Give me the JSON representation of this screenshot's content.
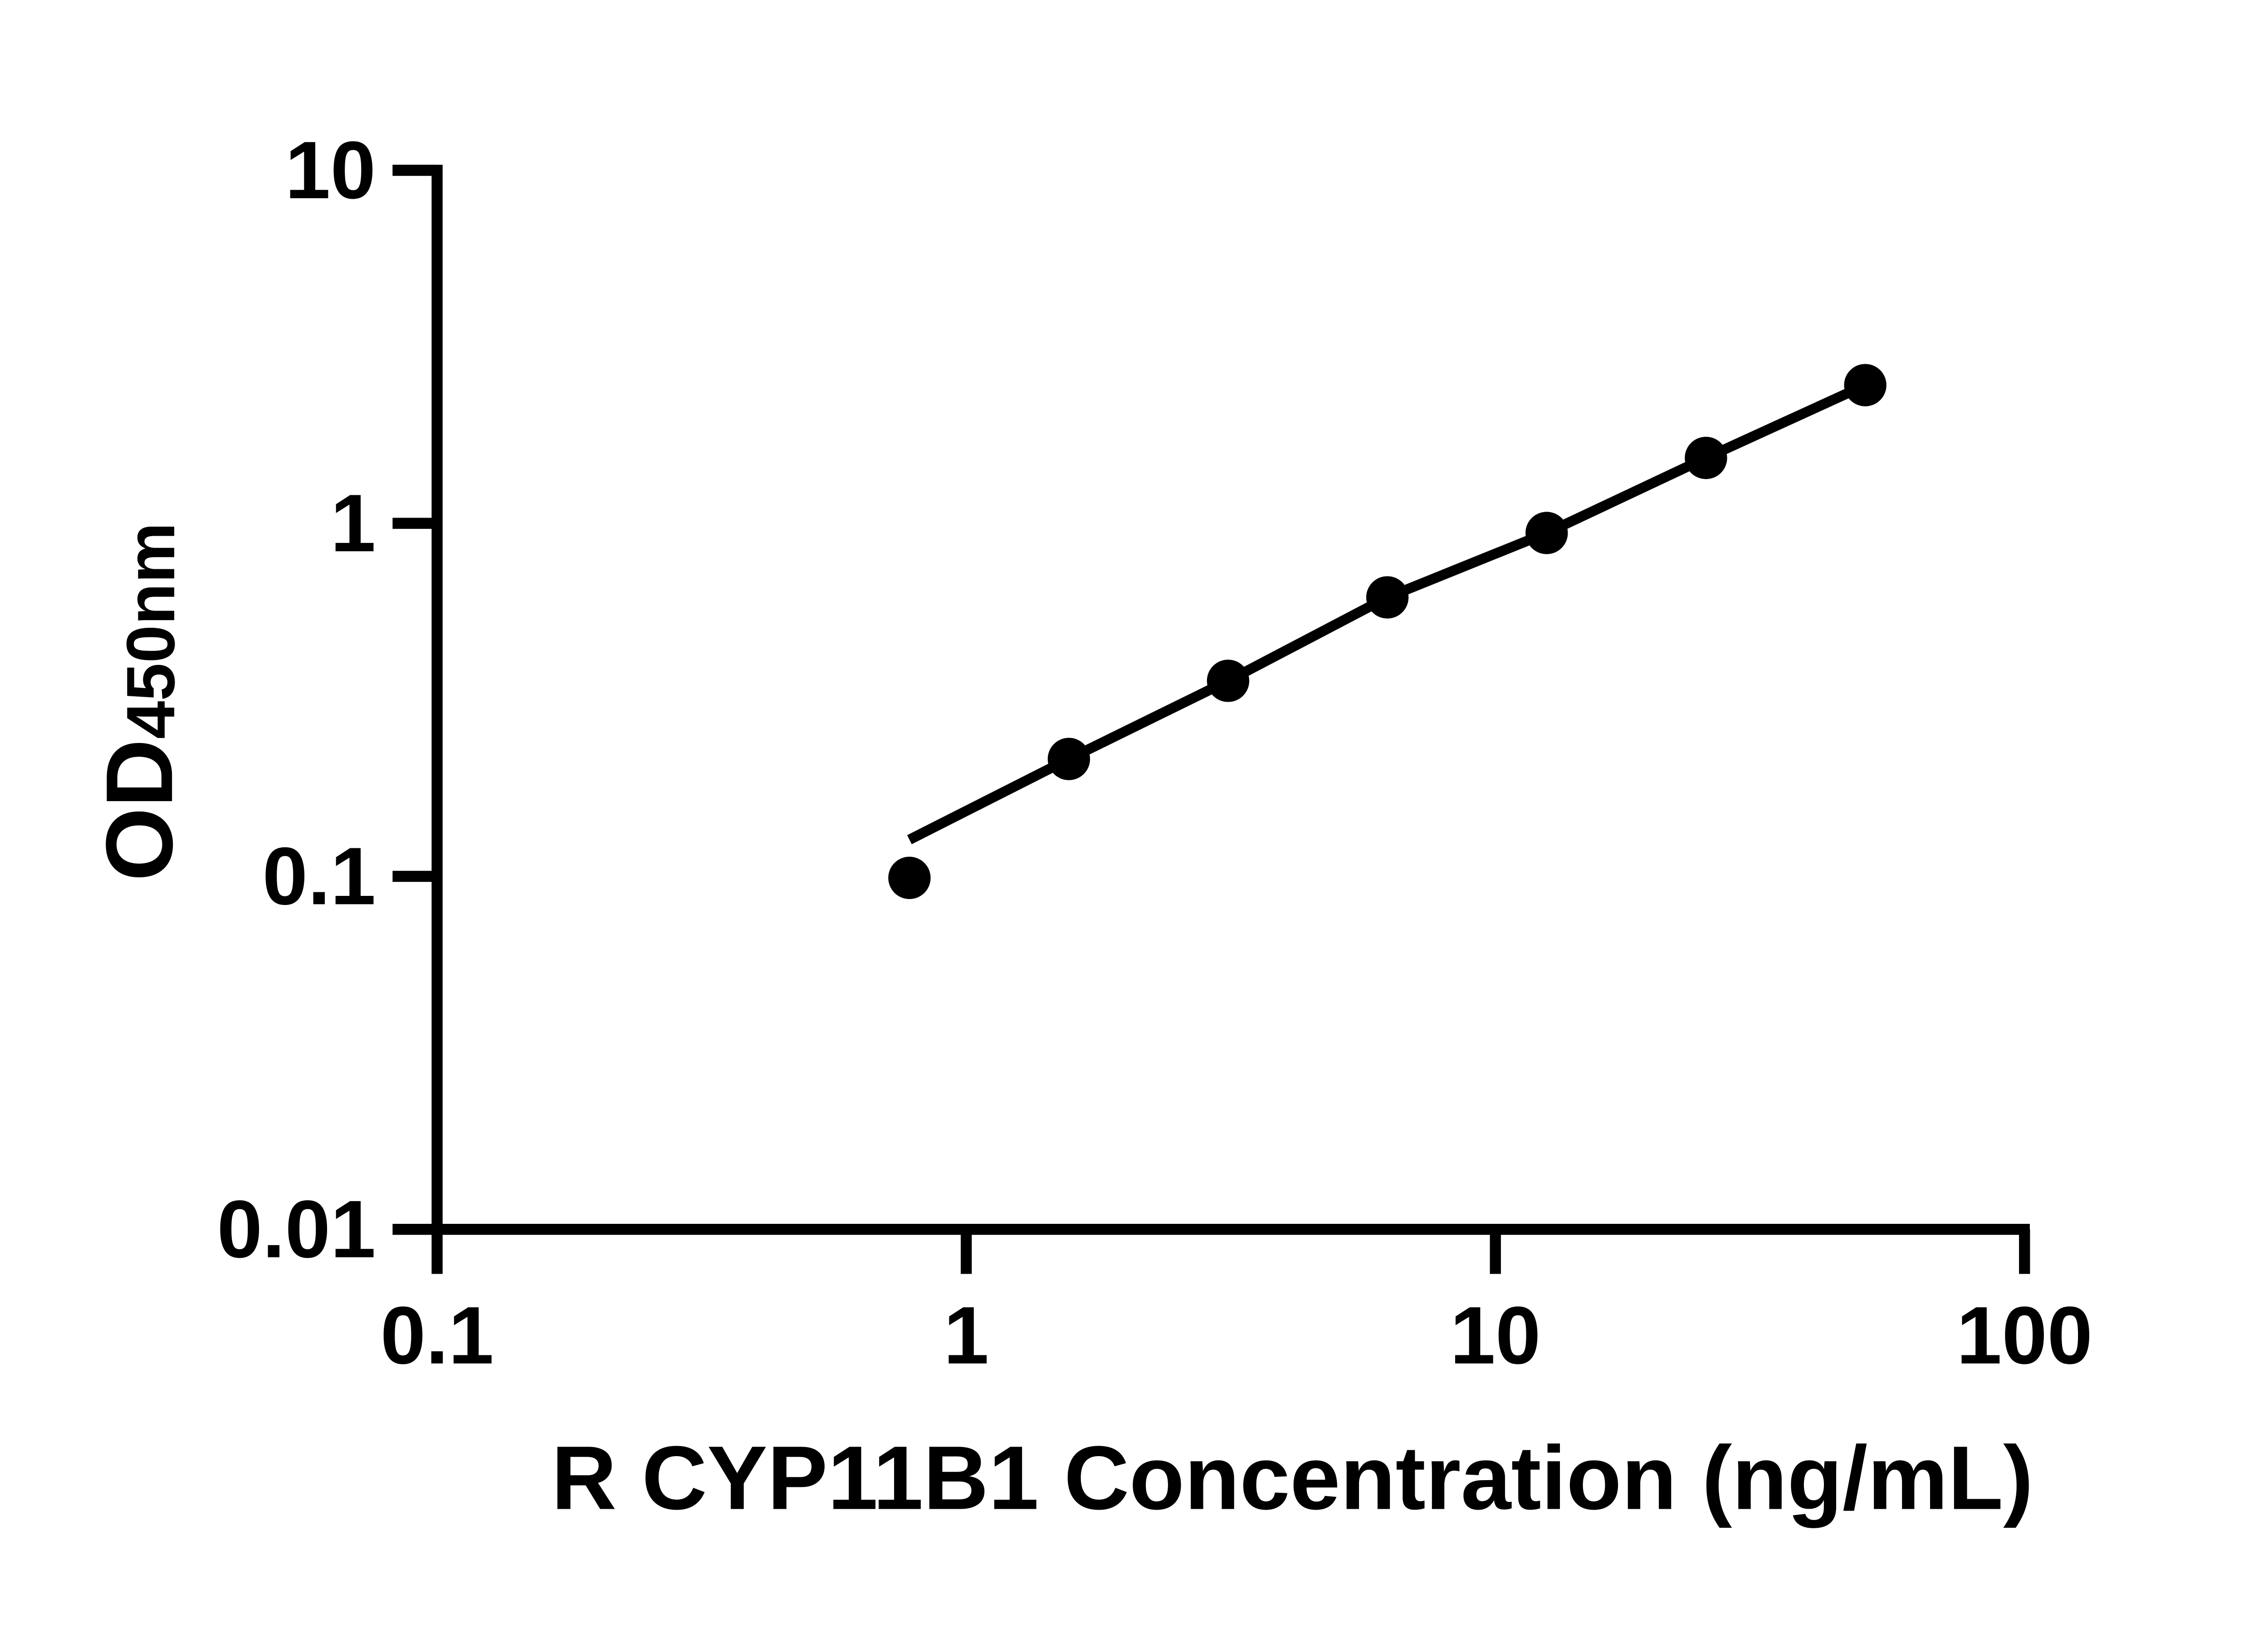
{
  "figure": {
    "background": "#ffffff",
    "ink": "#000000"
  },
  "chart_data": {
    "type": "scatter",
    "title": "",
    "xlabel": "R CYP11B1 Concentration (ng/mL)",
    "ylabel_main": "OD",
    "ylabel_sub": "450nm",
    "x_scale": "log",
    "y_scale": "log",
    "xlim": [
      0.1,
      100
    ],
    "ylim": [
      0.01,
      10
    ],
    "grid": false,
    "legend": false,
    "x_ticks": {
      "values": [
        0.1,
        1,
        10,
        100
      ],
      "labels": [
        "0.1",
        "1",
        "10",
        "100"
      ]
    },
    "y_ticks": {
      "values": [
        10,
        1,
        0.1,
        0.01
      ],
      "labels": [
        "10",
        "1",
        "0.1",
        "0.01"
      ]
    },
    "series": [
      {
        "name": "standard-points",
        "type": "scatter",
        "marker": "filled-circle",
        "color": "#000000",
        "x": [
          0.781,
          1.563,
          3.125,
          6.25,
          12.5,
          25,
          50
        ],
        "y": [
          0.099,
          0.215,
          0.358,
          0.617,
          0.939,
          1.532,
          2.463
        ]
      },
      {
        "name": "fit-line",
        "type": "line",
        "color": "#000000",
        "x": [
          0.781,
          1.563,
          3.125,
          6.25,
          12.5,
          25,
          50
        ],
        "y": [
          0.127,
          0.215,
          0.358,
          0.617,
          0.939,
          1.532,
          2.463
        ]
      }
    ]
  }
}
